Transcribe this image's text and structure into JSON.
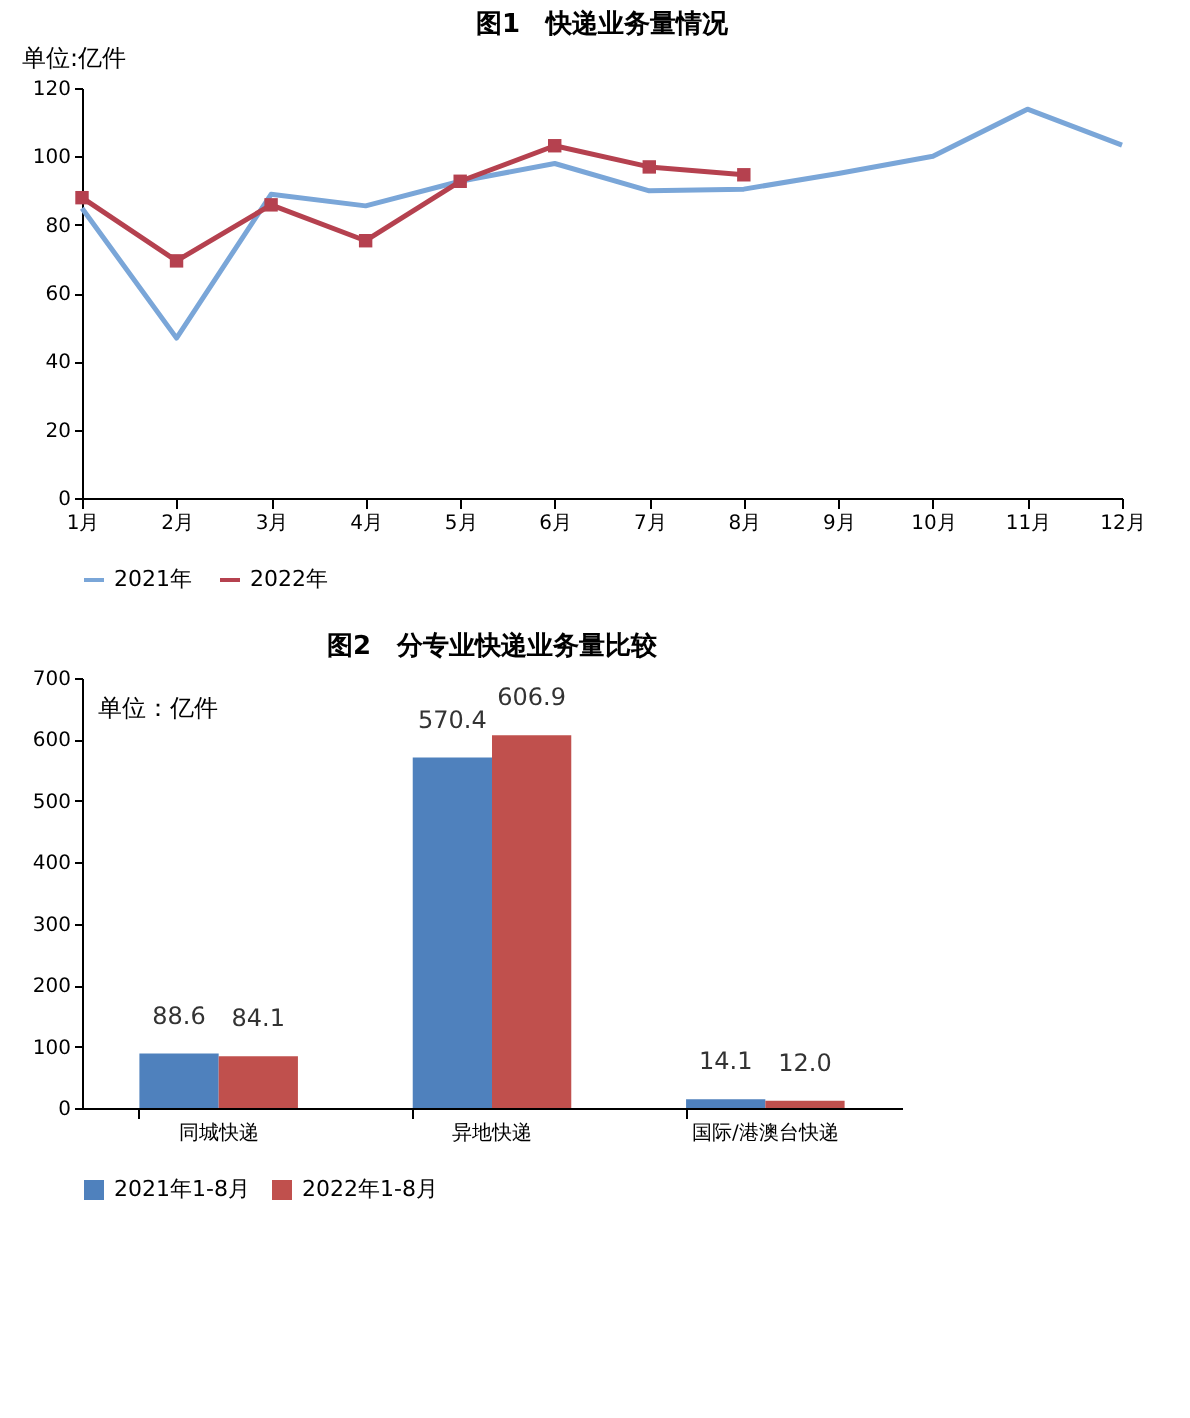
{
  "chart_data": [
    {
      "type": "line",
      "title": "图1　快递业务量情况",
      "ylabel": "单位:亿件",
      "categories": [
        "1月",
        "2月",
        "3月",
        "4月",
        "5月",
        "6月",
        "7月",
        "8月",
        "9月",
        "10月",
        "11月",
        "12月"
      ],
      "series": [
        {
          "name": "2021年",
          "color": "#7aa6d8",
          "marker": "none",
          "values": [
            84.8,
            46.8,
            88.9,
            85.5,
            92.7,
            97.9,
            89.9,
            90.4,
            95.0,
            100.0,
            113.8,
            103.3
          ]
        },
        {
          "name": "2022年",
          "color": "#b5414f",
          "marker": "square",
          "values": [
            87.9,
            69.4,
            85.8,
            75.3,
            92.7,
            103.1,
            96.9,
            94.6,
            null,
            null,
            null,
            null
          ]
        }
      ],
      "ylim": [
        0,
        120
      ],
      "yticks": [
        0,
        20,
        40,
        60,
        80,
        100,
        120
      ],
      "grid": false,
      "legend": "bottom"
    },
    {
      "type": "bar",
      "title": "图2　分专业快递业务量比较",
      "ylabel": "单位：亿件",
      "categories": [
        "同城快递",
        "异地快递",
        "国际/港澳台快递"
      ],
      "series": [
        {
          "name": "2021年1-8月",
          "color": "#4f81bd",
          "values": [
            88.6,
            570.4,
            14.1
          ],
          "value_labels": [
            "88.6",
            "570.4",
            "14.1"
          ]
        },
        {
          "name": "2022年1-8月",
          "color": "#c0504d",
          "values": [
            84.1,
            606.9,
            12.0
          ],
          "value_labels": [
            "84.1",
            "606.9",
            "12.0"
          ]
        }
      ],
      "ylim": [
        0,
        700
      ],
      "yticks": [
        0,
        100,
        200,
        300,
        400,
        500,
        600,
        700
      ],
      "grid": false,
      "legend": "bottom"
    }
  ]
}
